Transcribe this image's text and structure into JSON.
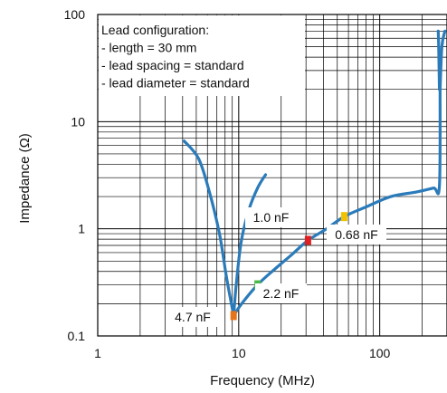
{
  "chart_data": {
    "type": "line",
    "x_scale": "log",
    "y_scale": "log",
    "xlabel": "Frequency (MHz)",
    "ylabel": "Impedance (Ω)",
    "xlim": [
      1,
      300
    ],
    "ylim": [
      0.1,
      100
    ],
    "x_ticks": [
      {
        "value": 1,
        "label": "1"
      },
      {
        "value": 10,
        "label": "10"
      },
      {
        "value": 100,
        "label": "100"
      }
    ],
    "y_ticks": [
      {
        "value": 0.1,
        "label": "0.1"
      },
      {
        "value": 1,
        "label": "1"
      },
      {
        "value": 10,
        "label": "10"
      },
      {
        "value": 100,
        "label": "100"
      }
    ],
    "grid": true,
    "line_color": "#2B7BBA",
    "series": [
      {
        "x": [
          4.1,
          5.2,
          6.2,
          7.3,
          8.2,
          9.2
        ],
        "y": [
          6.6,
          4.5,
          2.2,
          0.9,
          0.35,
          0.155
        ]
      },
      {
        "x": [
          9.2,
          9.6,
          10.4,
          11.8,
          13.6,
          15.5
        ],
        "y": [
          0.155,
          0.3,
          0.75,
          1.5,
          2.4,
          3.2
        ]
      },
      {
        "x": [
          9.2,
          10.5,
          13.6,
          18,
          24,
          31,
          42,
          56,
          80,
          120,
          180,
          240,
          265,
          268
        ],
        "y": [
          0.155,
          0.2,
          0.3,
          0.42,
          0.58,
          0.78,
          1.0,
          1.3,
          1.6,
          2.0,
          2.2,
          2.4,
          2.5,
          20
        ]
      },
      {
        "x": [
          265,
          262,
          260
        ],
        "y": [
          20,
          50,
          70
        ]
      },
      {
        "x": [
          268,
          276,
          290
        ],
        "y": [
          20,
          50,
          70
        ]
      }
    ],
    "annotations": [
      {
        "label": "4.7 nF",
        "x": 9.2,
        "y": 0.155,
        "color": "#E8741A"
      },
      {
        "label": "2.2 nF",
        "x": 13.6,
        "y": 0.3,
        "color": "#4CB848"
      },
      {
        "label": "1.0 nF",
        "x": 31,
        "y": 0.78,
        "color": "#E02020"
      },
      {
        "label": "0.68 nF",
        "x": 56,
        "y": 1.3,
        "color": "#F2C200"
      }
    ],
    "legend_box": {
      "position": "top-left",
      "lines": [
        "Lead configuration:",
        "- length = 30 mm",
        "- lead spacing = standard",
        "- lead diameter = standard"
      ]
    }
  }
}
